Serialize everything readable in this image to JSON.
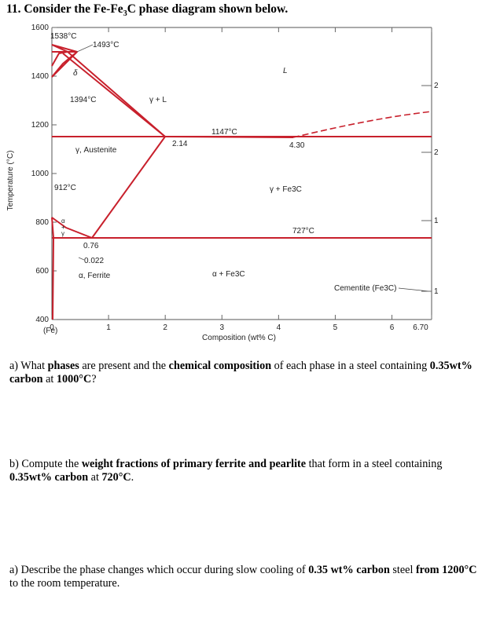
{
  "question": {
    "number": "11.",
    "title_pre": "Consider the Fe-Fe",
    "title_sub": "3",
    "title_post": "C phase diagram shown below."
  },
  "chart_data": {
    "type": "phase-diagram",
    "ylabel": "Temperature (°C)",
    "xlabel": "Composition (wt% C)",
    "xlim": [
      0,
      6.7
    ],
    "ylim": [
      400,
      1600
    ],
    "y_ticks": [
      "1600",
      "1400",
      "1200",
      "1000",
      "800",
      "600",
      "400"
    ],
    "x_ticks": [
      "0",
      "1",
      "2",
      "3",
      "4",
      "5",
      "6",
      "6.70"
    ],
    "x_origin_sublabel": "(Fe)",
    "points": {
      "fe_melting": {
        "x": 0,
        "y": 1538,
        "label": "1538°C"
      },
      "peritectic": {
        "x": 0.17,
        "y": 1493,
        "label": "1493°C"
      },
      "delta_gamma": {
        "x": 0,
        "y": 1394,
        "label": "1394°C"
      },
      "alpha_gamma": {
        "x": 0,
        "y": 912,
        "label": "912°C"
      },
      "eutectic": {
        "x": 4.3,
        "y": 1147,
        "label": "1147°C",
        "composition_label": "4.30"
      },
      "max_c_austenite": {
        "x": 2.14,
        "y": 1147,
        "label": "2.14"
      },
      "eutectoid": {
        "x": 0.76,
        "y": 727,
        "label": "727°C",
        "composition_label": "0.76"
      },
      "max_c_ferrite": {
        "x": 0.022,
        "y": 727,
        "label": "0.022"
      }
    },
    "phase_labels": {
      "liquid": "L",
      "gamma_plus_l": "γ + L",
      "delta": "δ",
      "austenite": "γ, Austenite",
      "gamma_plus_fe3c": "γ + Fe3C",
      "alpha_plus_gamma_top": "α",
      "alpha_plus_gamma_mid": "+",
      "alpha_plus_gamma_bot": "γ",
      "ferrite": "α, Ferrite",
      "alpha_plus_fe3c": "α + Fe3C",
      "cementite": "Cementite (Fe3C)"
    },
    "right_edge_marks": [
      "2",
      "2",
      "1",
      "1"
    ],
    "colors": {
      "phase_line": "#c8202c",
      "axis": "#555555",
      "text": "#222222"
    }
  },
  "parts": [
    {
      "prefix": "a) What ",
      "b1": "phases",
      "mid1": " are present and the ",
      "b2": "chemical composition",
      "mid2": " of each phase in a steel containing ",
      "b3": "0.35wt% carbon",
      "mid3": " at ",
      "b4": "1000°C",
      "suffix": "?"
    },
    {
      "prefix": "b) Compute the ",
      "b1": "weight fractions of primary ferrite and pearlite",
      "mid1": " that form in a steel containing ",
      "b2": "0.35wt% carbon",
      "mid2": " at ",
      "b3": "720°C",
      "suffix": "."
    },
    {
      "prefix": "a) Describe the phase changes which occur during slow cooling of ",
      "b1": "0.35 wt% carbon",
      "mid1": " steel ",
      "b2": "from 1200°C",
      "suffix": " to the room temperature."
    }
  ]
}
